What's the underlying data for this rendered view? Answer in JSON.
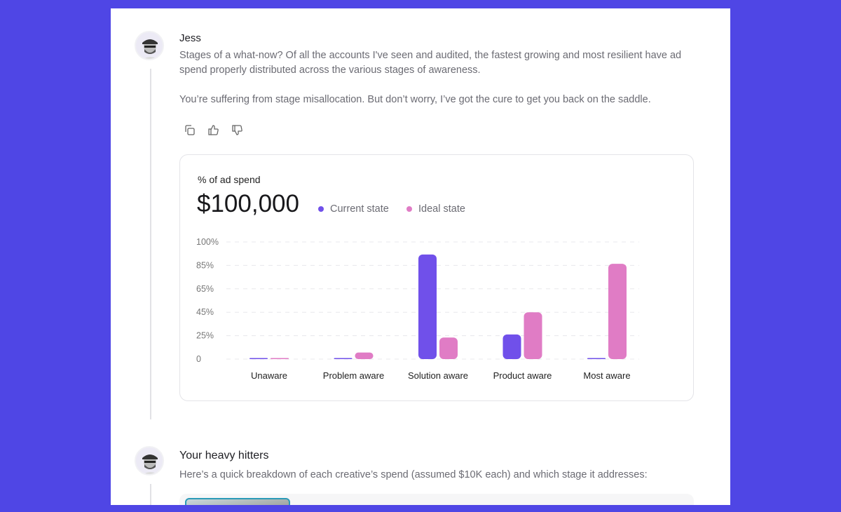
{
  "message1": {
    "author": "Jess",
    "paragraph1": "Stages of a what-now? Of all the accounts I've seen and audited, the fastest growing and most resilient have ad spend properly distributed across the various stages of awareness.",
    "paragraph2": "You’re suffering from stage misallocation. But don’t worry, I’ve got the cure to get you back on the saddle.",
    "actions": [
      "copy-icon",
      "thumbs-up-icon",
      "thumbs-down-icon"
    ]
  },
  "chart_card": {
    "label": "% of ad spend",
    "value": "$100,000"
  },
  "chart_data": {
    "type": "bar",
    "categories": [
      "Unaware",
      "Problem aware",
      "Solution aware",
      "Product aware",
      "Most aware"
    ],
    "series": [
      {
        "name": "Current state",
        "color": "#7050ea",
        "values": [
          1,
          1,
          92,
          26,
          1
        ]
      },
      {
        "name": "Ideal state",
        "color": "#e07cc5",
        "values": [
          1,
          7,
          23,
          45,
          86
        ]
      }
    ],
    "y_ticks": [
      "0",
      "25%",
      "45%",
      "65%",
      "85%",
      "100%"
    ],
    "y_tick_values": [
      0,
      25,
      45,
      65,
      85,
      100
    ],
    "ylim": [
      0,
      100
    ],
    "grid": true,
    "legend": "top-left"
  },
  "message2": {
    "title": "Your heavy hitters",
    "text": "Here’s a quick breakdown of each creative’s spend (assumed $10K each) and which stage it addresses:"
  }
}
